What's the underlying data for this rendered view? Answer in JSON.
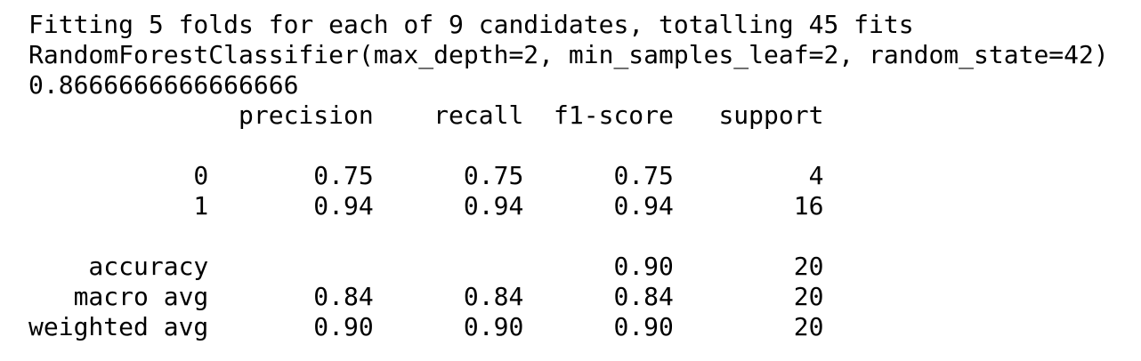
{
  "console_output": {
    "cv_message": "Fitting 5 folds for each of 9 candidates, totalling 45 fits",
    "best_estimator": "RandomForestClassifier(max_depth=2, min_samples_leaf=2, random_state=42)",
    "score": "0.8666666666666666",
    "classification_report": {
      "header": "              precision    recall  f1-score   support",
      "rows": [
        "           0       0.75      0.75      0.75         4",
        "           1       0.94      0.94      0.94        16"
      ],
      "summary": [
        "    accuracy                           0.90        20",
        "   macro avg       0.84      0.84      0.84        20",
        "weighted avg       0.90      0.90      0.90        20"
      ]
    }
  }
}
